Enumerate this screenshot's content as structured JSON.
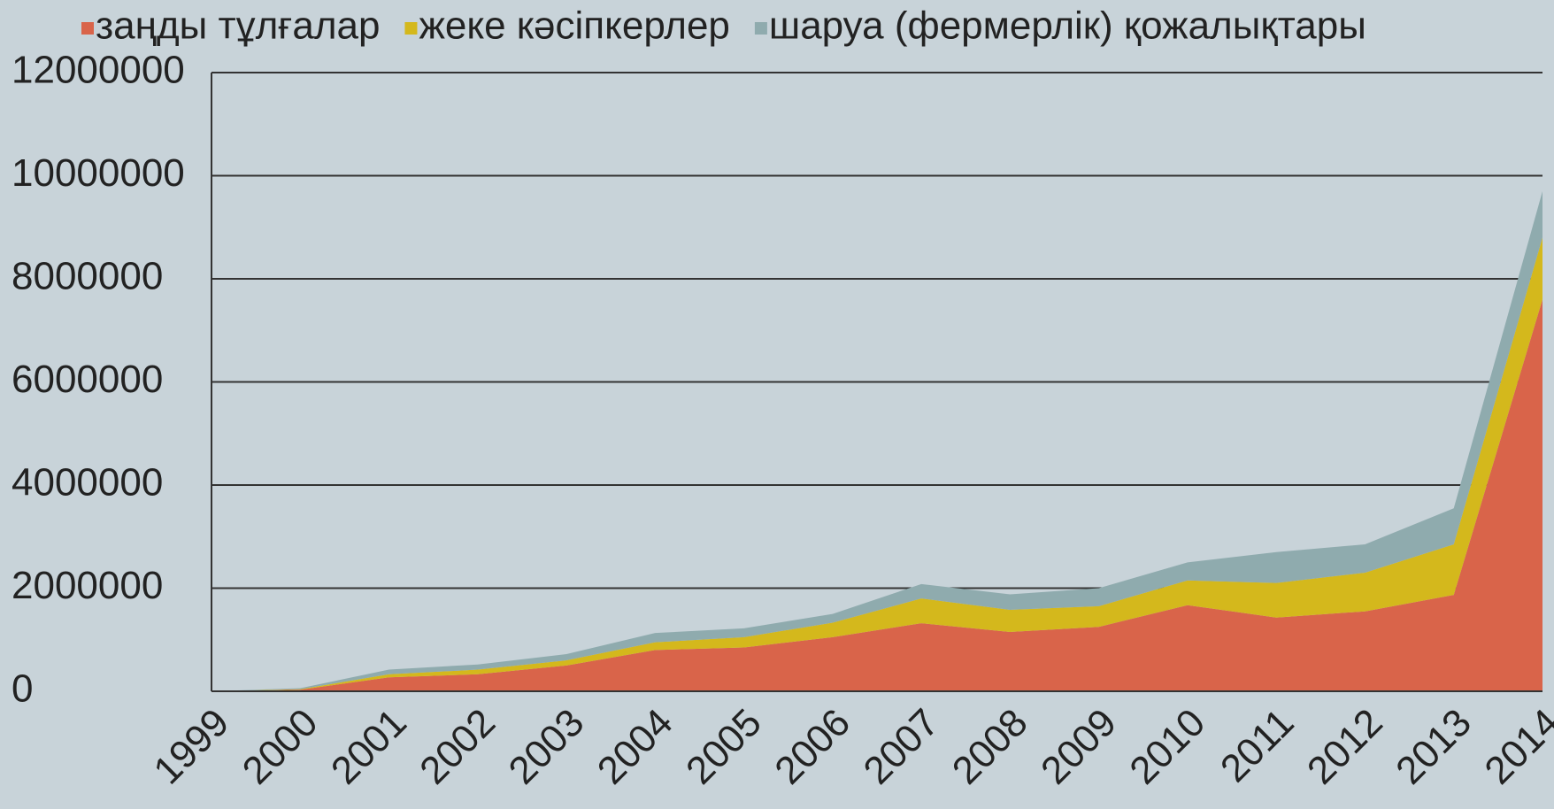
{
  "chart_data": {
    "type": "stacked_area",
    "categories": [
      "1999",
      "2000",
      "2001",
      "2002",
      "2003",
      "2004",
      "2005",
      "2006",
      "2007",
      "2008",
      "2009",
      "2010",
      "2011",
      "2012",
      "2013",
      "2014"
    ],
    "series": [
      {
        "name": "заңды тұлғалар",
        "color": "#d9644a",
        "values": [
          0,
          30000,
          270000,
          330000,
          500000,
          800000,
          850000,
          1050000,
          1320000,
          1150000,
          1250000,
          1670000,
          1430000,
          1550000,
          1870000,
          7600000
        ]
      },
      {
        "name": "жеке кәсіпкерлер",
        "color": "#d4b81c",
        "values": [
          0,
          10000,
          60000,
          90000,
          100000,
          150000,
          200000,
          280000,
          480000,
          430000,
          400000,
          480000,
          670000,
          750000,
          980000,
          1200000
        ]
      },
      {
        "name": "шаруа (фермерлік) қожалықтары",
        "color": "#8fabae",
        "values": [
          0,
          20000,
          90000,
          100000,
          120000,
          180000,
          170000,
          170000,
          280000,
          300000,
          350000,
          350000,
          600000,
          550000,
          700000,
          900000
        ]
      }
    ],
    "ylim": [
      0,
      12000000
    ],
    "yticks": [
      0,
      2000000,
      4000000,
      6000000,
      8000000,
      10000000,
      12000000
    ],
    "grid": true,
    "legend": "top"
  }
}
